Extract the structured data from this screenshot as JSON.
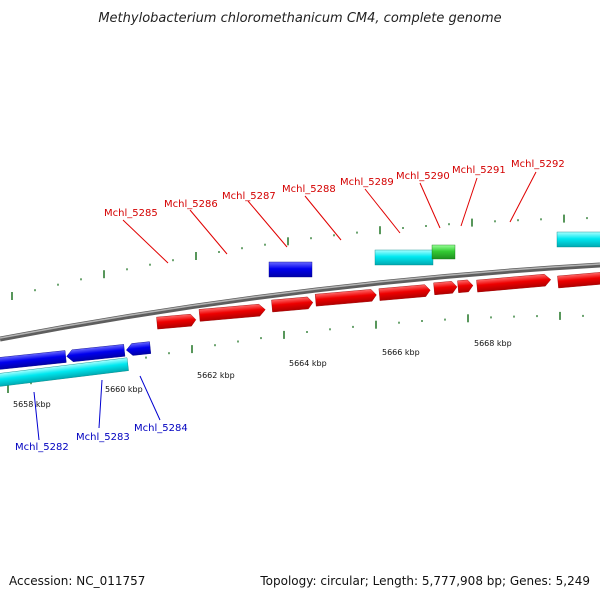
{
  "title": "Methylobacterium chloromethanicum CM4, complete genome",
  "footer": {
    "accession": "Accession: NC_011757",
    "summary": "Topology: circular; Length: 5,777,908 bp; Genes: 5,249"
  },
  "colors": {
    "forward_gene": "#ee0000",
    "reverse_gene": "#0000ee",
    "forward_cds": "#00e0ee",
    "reverse_cds": "#00e0ee",
    "rna_gene": "#33cc33",
    "backbone": "#888888",
    "tick": "#2e7d32"
  },
  "scale_labels": [
    "5658 kbp",
    "5660 kbp",
    "5662 kbp",
    "5664 kbp",
    "5666 kbp",
    "5668 kbp"
  ],
  "forward_labels": [
    "Mchl_5285",
    "Mchl_5286",
    "Mchl_5287",
    "Mchl_5288",
    "Mchl_5289",
    "Mchl_5290",
    "Mchl_5291",
    "Mchl_5292"
  ],
  "reverse_labels": [
    "Mchl_5282",
    "Mchl_5283",
    "Mchl_5284"
  ]
}
